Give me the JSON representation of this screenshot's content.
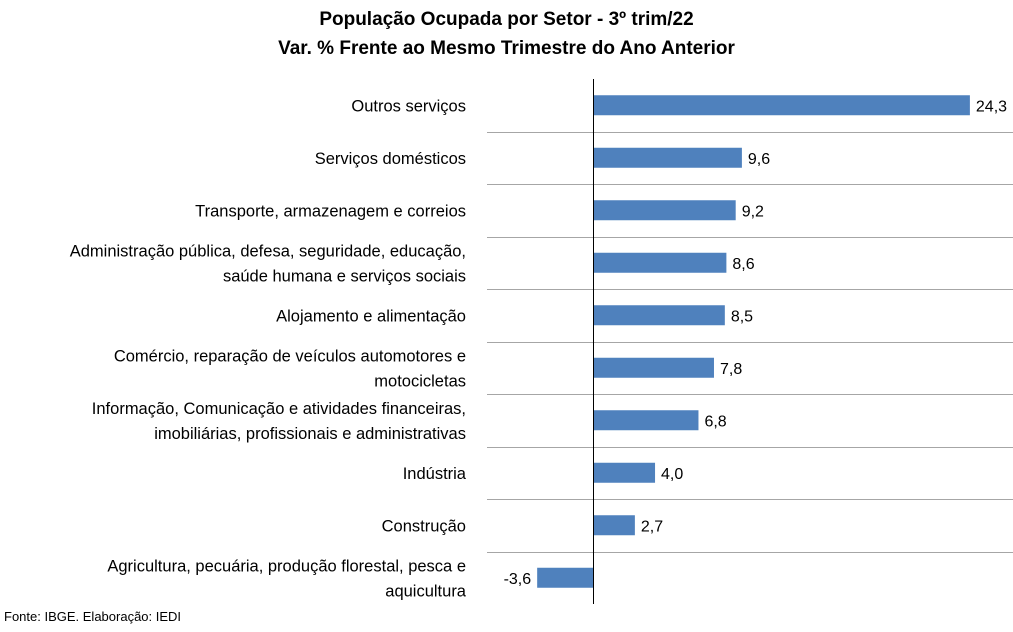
{
  "chart_data": {
    "type": "bar",
    "orientation": "horizontal",
    "title": "População Ocupada por Setor - 3º trim/22",
    "subtitle": "Var. % Frente ao Mesmo Trimestre do Ano Anterior",
    "categories": [
      [
        "Outros serviços"
      ],
      [
        "Serviços domésticos"
      ],
      [
        "Transporte, armazenagem e correios"
      ],
      [
        "Administração pública, defesa, seguridade, educação,",
        "saúde humana e serviços sociais"
      ],
      [
        "Alojamento e alimentação"
      ],
      [
        "Comércio, reparação de veículos automotores e",
        "motocicletas"
      ],
      [
        "Informação, Comunicação e atividades financeiras,",
        "imobiliárias, profissionais e administrativas"
      ],
      [
        "Indústria"
      ],
      [
        "Construção"
      ],
      [
        "Agricultura, pecuária, produção florestal, pesca e",
        "aquicultura"
      ]
    ],
    "values": [
      24.3,
      9.6,
      9.2,
      8.6,
      8.5,
      7.8,
      6.8,
      4.0,
      2.7,
      -3.6
    ],
    "value_labels": [
      "24,3",
      "9,6",
      "9,2",
      "8,6",
      "8,5",
      "7,8",
      "6,8",
      "4,0",
      "2,7",
      "-3,6"
    ],
    "xlim": [
      -3.6,
      24.3
    ],
    "bar_color": "#4f81bd",
    "grid": true
  },
  "source": "Fonte: IBGE. Elaboração: IEDI"
}
